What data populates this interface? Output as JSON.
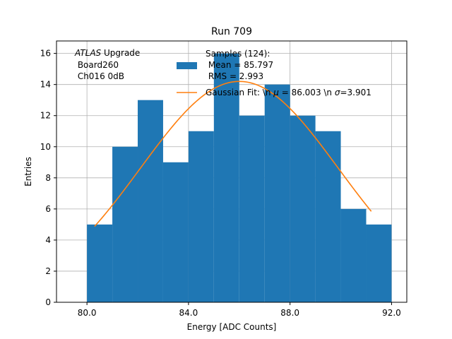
{
  "chart_data": {
    "type": "bar",
    "title": "Run 709",
    "xlabel": "Energy [ADC Counts]",
    "ylabel": "Entries",
    "xlim": [
      78.8,
      92.6
    ],
    "ylim": [
      0,
      16.8
    ],
    "grid": true,
    "x_ticks": [
      80.0,
      84.0,
      88.0,
      92.0
    ],
    "x_tick_labels": [
      "80.0",
      "84.0",
      "88.0",
      "92.0"
    ],
    "y_ticks": [
      0,
      2,
      4,
      6,
      8,
      10,
      12,
      14,
      16
    ],
    "y_tick_labels": [
      "0",
      "2",
      "4",
      "6",
      "8",
      "10",
      "12",
      "14",
      "16"
    ],
    "bin_edges": [
      80.0,
      81.0,
      82.0,
      83.0,
      84.0,
      85.0,
      86.0,
      87.0,
      88.0,
      89.0,
      90.0,
      91.0,
      92.0
    ],
    "values": [
      5,
      10,
      13,
      9,
      11,
      16,
      12,
      14,
      12,
      11,
      6,
      5
    ],
    "fit": {
      "type": "gaussian",
      "mu": 86.003,
      "sigma": 3.901,
      "x_start": 80.3,
      "x_end": 91.2,
      "peak": 14.2
    },
    "colors": {
      "bars": "#1f77b4",
      "fit": "#ff7f0e",
      "grid": "#b0b0b0"
    },
    "annotation": {
      "line1_italic": "ATLAS",
      "line1_rest": " Upgrade",
      "line2": " Board260",
      "line3": " Ch016 0dB"
    },
    "legend": {
      "placement": "top-right",
      "bar_entry_line1": "Samples (124):",
      "bar_entry_line2": " Mean = 85.797",
      "bar_entry_line3": " RMS = 2.993",
      "fit_entry_part1": "Gaussian Fit: \\n ",
      "fit_entry_mu_symbol": "μ",
      "fit_entry_part2": " = 86.003 \\n ",
      "fit_entry_sigma_symbol": "σ",
      "fit_entry_part3": "=3.901"
    }
  }
}
